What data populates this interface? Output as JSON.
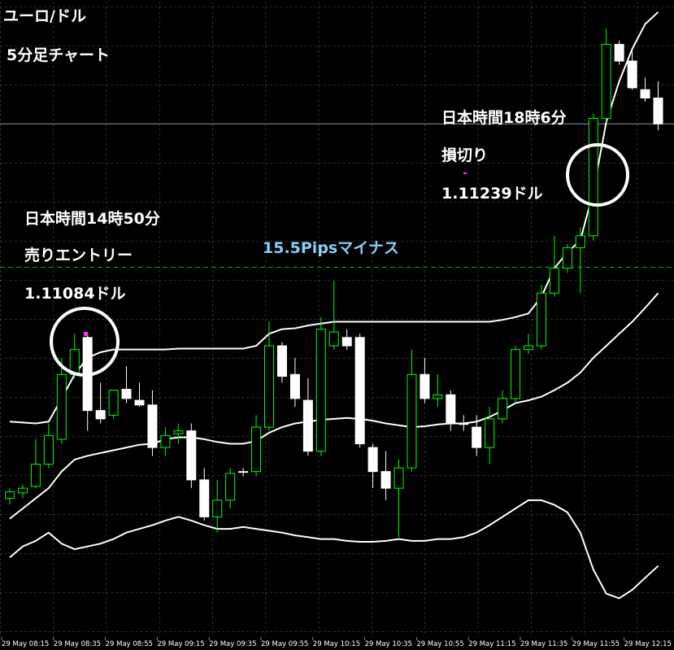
{
  "chart_data": {
    "type": "candlestick",
    "title": "ユーロ/ドル",
    "subtitle": "5分足チャート",
    "annotations": {
      "entry_time": "日本時間14時50分",
      "entry_action": "売りエントリー",
      "result": "15.5Pipsマイナス",
      "stop_time": "日本時間18時6分",
      "stop_action": "損切り"
    },
    "entry": {
      "value": 1.11084,
      "label": "1.11084ドル"
    },
    "stop": {
      "value": 1.11239,
      "label": "1.11239ドル"
    },
    "ylim": [
      1.1067,
      1.11373
    ],
    "up_color": "#00ff00",
    "down_color": "#ffffff",
    "band_color": "#ffffff",
    "categories": [
      "29 May 08:15",
      null,
      null,
      null,
      "29 May 08:35",
      null,
      null,
      null,
      "29 May 08:55",
      null,
      null,
      null,
      "29 May 09:15",
      null,
      null,
      null,
      "29 May 09:35",
      null,
      null,
      null,
      "29 May 09:55",
      null,
      null,
      null,
      "29 May 10:15",
      null,
      null,
      null,
      "29 May 10:35",
      null,
      null,
      null,
      "29 May 10:55",
      null,
      null,
      null,
      "29 May 11:15",
      null,
      null,
      null,
      "29 May 11:35",
      null,
      null,
      null,
      "29 May 11:55",
      null,
      null,
      null,
      "29 May 12:15",
      null,
      null
    ],
    "open": [
      1.10834,
      1.1084,
      1.10847,
      1.10871,
      1.10898,
      1.10968,
      1.11008,
      1.10929,
      1.10924,
      1.10952,
      1.1094,
      1.10935,
      1.10889,
      1.10904,
      1.10907,
      1.10854,
      1.10814,
      1.10832,
      1.10863,
      1.10863,
      1.10911,
      1.10999,
      1.10968,
      1.1094,
      1.10885,
      1.10999,
      1.11008,
      1.11008,
      1.10889,
      1.10863,
      1.10845,
      1.10867,
      1.10968,
      1.10942,
      1.10946,
      1.10915,
      1.10911,
      1.10889,
      1.1092,
      1.10942,
      1.10995,
      1.10999,
      1.11056,
      1.11083,
      1.11105,
      1.11118,
      1.11245,
      1.11325,
      1.11307,
      1.11276,
      1.11267
    ],
    "high": [
      1.10845,
      1.10849,
      1.10898,
      1.10915,
      1.10986,
      1.11012,
      1.11012,
      1.10959,
      1.10951,
      1.10977,
      1.10959,
      1.10951,
      1.10911,
      1.10915,
      1.10915,
      1.10867,
      1.10854,
      1.10867,
      1.10867,
      1.10924,
      1.11025,
      1.11003,
      1.10986,
      1.10964,
      1.1103,
      1.11069,
      1.11017,
      1.11012,
      1.10893,
      1.10885,
      1.10876,
      1.10995,
      1.10986,
      1.10968,
      1.10951,
      1.10924,
      1.10924,
      1.10933,
      1.10951,
      1.10999,
      1.11012,
      1.11065,
      1.11118,
      1.11109,
      1.11127,
      1.1125,
      1.11342,
      1.11329,
      1.1132,
      1.11289,
      1.11285
    ],
    "low": [
      1.10827,
      1.10834,
      1.10845,
      1.10867,
      1.10893,
      1.10964,
      1.10907,
      1.10915,
      1.1092,
      1.10937,
      1.10933,
      1.1088,
      1.1088,
      1.10893,
      1.10845,
      1.1081,
      1.10797,
      1.10823,
      1.10858,
      1.10858,
      1.10907,
      1.10959,
      1.10933,
      1.1088,
      1.1088,
      1.10995,
      1.10995,
      1.10889,
      1.10845,
      1.10832,
      1.10792,
      1.10863,
      1.10937,
      1.10933,
      1.10907,
      1.10907,
      1.1088,
      1.10871,
      1.10915,
      1.10937,
      1.1099,
      1.10995,
      1.11052,
      1.11078,
      1.11056,
      1.11113,
      1.11241,
      1.11303,
      1.11276,
      1.11263,
      1.11232
    ],
    "close": [
      1.10841,
      1.10845,
      1.10871,
      1.10902,
      1.10968,
      1.10995,
      1.10929,
      1.1092,
      1.10951,
      1.10942,
      1.10935,
      1.10889,
      1.10902,
      1.10907,
      1.10854,
      1.10814,
      1.10832,
      1.10861,
      1.10863,
      1.10911,
      1.10999,
      1.10966,
      1.10942,
      1.10885,
      1.11017,
      1.11014,
      1.10999,
      1.10893,
      1.10863,
      1.10845,
      1.10867,
      1.10968,
      1.10942,
      1.10946,
      1.10915,
      1.10914,
      1.10889,
      1.1092,
      1.10942,
      1.10995,
      1.10999,
      1.11056,
      1.11083,
      1.11105,
      1.11118,
      1.11245,
      1.11325,
      1.11307,
      1.11278,
      1.11267,
      1.11239
    ],
    "bands": [
      {
        "values": [
          1.10917,
          1.10916,
          1.10915,
          1.10917,
          1.10942,
          1.10968,
          1.10986,
          1.10992,
          1.10995,
          1.10995,
          1.10995,
          1.10995,
          1.10995,
          1.10996,
          1.10996,
          1.10996,
          1.10996,
          1.10996,
          1.10996,
          1.10999,
          1.11012,
          1.11017,
          1.11018,
          1.11021,
          1.11023,
          1.11025,
          1.11025,
          1.11025,
          1.11025,
          1.11025,
          1.11025,
          1.11025,
          1.11025,
          1.11025,
          1.11025,
          1.11025,
          1.11025,
          1.11025,
          1.11027,
          1.1103,
          1.11034,
          1.11052,
          1.11083,
          1.111,
          1.11113,
          1.11166,
          1.11241,
          1.11285,
          1.1132,
          1.11347,
          1.1136
        ]
      },
      {
        "values": [
          1.10812,
          1.10823,
          1.10834,
          1.10845,
          1.10863,
          1.10876,
          1.1088,
          1.10883,
          1.10886,
          1.10889,
          1.10892,
          1.10893,
          1.10898,
          1.109,
          1.109,
          1.10898,
          1.10895,
          1.10893,
          1.10893,
          1.10896,
          1.10905,
          1.10911,
          1.10915,
          1.10917,
          1.10919,
          1.1092,
          1.10921,
          1.1092,
          1.10918,
          1.10915,
          1.10913,
          1.10911,
          1.10912,
          1.10914,
          1.10915,
          1.10915,
          1.10917,
          1.10922,
          1.10929,
          1.10937,
          1.1094,
          1.10944,
          1.10951,
          1.10959,
          1.1097,
          1.10986,
          1.10999,
          1.11012,
          1.11025,
          1.1104,
          1.11056
        ]
      },
      {
        "values": [
          1.1077,
          1.10782,
          1.10788,
          1.10797,
          1.10785,
          1.10779,
          1.10782,
          1.10785,
          1.1079,
          1.10797,
          1.10801,
          1.10805,
          1.1081,
          1.10814,
          1.1081,
          1.10805,
          1.10801,
          1.10801,
          1.10803,
          1.10801,
          1.10799,
          1.10797,
          1.10794,
          1.10792,
          1.1079,
          1.1079,
          1.10788,
          1.10787,
          1.10787,
          1.10788,
          1.1079,
          1.10788,
          1.10788,
          1.1079,
          1.1079,
          1.10792,
          1.10797,
          1.10805,
          1.10814,
          1.10823,
          1.10832,
          1.10832,
          1.10827,
          1.10819,
          1.10797,
          1.10757,
          1.10731,
          1.10726,
          1.10735,
          1.10748,
          1.10761
        ]
      }
    ]
  }
}
